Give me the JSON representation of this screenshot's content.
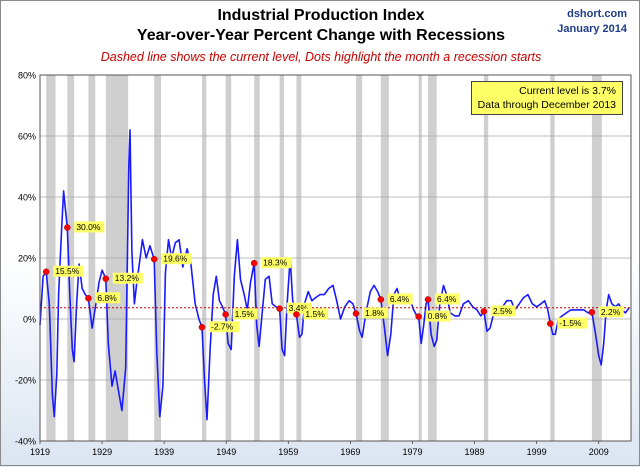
{
  "header": {
    "title_line1": "Industrial Production Index",
    "title_line2": "Year-over-Year Percent Change with Recessions",
    "subtitle": "Dashed line shows the current level, Dots highlight the month a recession starts",
    "site": "dshort.com",
    "date": "January 2014"
  },
  "annotation": {
    "line1": "Current level is 3.7%",
    "line2": "Data through December 2013"
  },
  "colors": {
    "series": "#1a1aff",
    "dot": "#ff0000",
    "recession": "#cfcfcf",
    "current_level": "#cc0000",
    "label_bg": "#ffff66"
  },
  "chart_data": {
    "type": "line",
    "title": "Industrial Production Index",
    "subtitle": "Year-over-Year Percent Change with Recessions",
    "xlabel": "",
    "ylabel": "",
    "xlim": [
      1919.0,
      2014.2
    ],
    "ylim": [
      -40,
      80
    ],
    "y_ticks": [
      -40,
      -20,
      0,
      20,
      40,
      60,
      80
    ],
    "y_tick_labels": [
      "-40%",
      "-20%",
      "0%",
      "20%",
      "40%",
      "60%",
      "80%"
    ],
    "x_ticks": [
      1919,
      1929,
      1939,
      1949,
      1959,
      1969,
      1979,
      1989,
      1999,
      2009
    ],
    "x_tick_labels": [
      "1919",
      "1929",
      "1939",
      "1949",
      "1959",
      "1969",
      "1979",
      "1989",
      "1999",
      "2009"
    ],
    "grid": true,
    "current_level": 3.7,
    "recessions": [
      [
        1920.0,
        1921.5
      ],
      [
        1923.4,
        1924.5
      ],
      [
        1926.8,
        1927.9
      ],
      [
        1929.6,
        1933.2
      ],
      [
        1937.4,
        1938.5
      ],
      [
        1945.1,
        1945.8
      ],
      [
        1948.9,
        1949.8
      ],
      [
        1953.5,
        1954.4
      ],
      [
        1957.6,
        1958.3
      ],
      [
        1960.3,
        1961.1
      ],
      [
        1969.9,
        1970.9
      ],
      [
        1973.9,
        1975.2
      ],
      [
        1980.0,
        1980.5
      ],
      [
        1981.5,
        1982.9
      ],
      [
        1990.5,
        1991.2
      ],
      [
        2001.2,
        2001.9
      ],
      [
        2007.9,
        2009.5
      ]
    ],
    "recession_start_points": [
      {
        "x": 1920.0,
        "y": 15.5,
        "label": "15.5%"
      },
      {
        "x": 1923.4,
        "y": 30.0,
        "label": "30.0%"
      },
      {
        "x": 1926.8,
        "y": 6.8,
        "label": "6.8%"
      },
      {
        "x": 1929.6,
        "y": 13.2,
        "label": "13.2%"
      },
      {
        "x": 1937.4,
        "y": 19.6,
        "label": "19.6%"
      },
      {
        "x": 1945.1,
        "y": -2.7,
        "label": "-2.7%"
      },
      {
        "x": 1948.9,
        "y": 1.5,
        "label": "1.5%"
      },
      {
        "x": 1953.5,
        "y": 18.3,
        "label": "18.3%"
      },
      {
        "x": 1957.6,
        "y": 3.4,
        "label": "3.4%"
      },
      {
        "x": 1960.3,
        "y": 1.5,
        "label": "1.5%"
      },
      {
        "x": 1969.9,
        "y": 1.8,
        "label": "1.8%"
      },
      {
        "x": 1973.9,
        "y": 6.4,
        "label": "6.4%"
      },
      {
        "x": 1980.0,
        "y": 0.8,
        "label": "0.8%"
      },
      {
        "x": 1981.5,
        "y": 6.4,
        "label": "6.4%"
      },
      {
        "x": 1990.5,
        "y": 2.5,
        "label": "2.5%"
      },
      {
        "x": 2001.2,
        "y": -1.5,
        "label": "-1.5%"
      },
      {
        "x": 2007.9,
        "y": 2.2,
        "label": "2.2%"
      }
    ],
    "series": [
      {
        "values": [
          [
            1919.0,
            -2
          ],
          [
            1919.5,
            14
          ],
          [
            1920.0,
            15.5
          ],
          [
            1920.5,
            5
          ],
          [
            1921.0,
            -25
          ],
          [
            1921.3,
            -32
          ],
          [
            1921.7,
            -18
          ],
          [
            1922.0,
            8
          ],
          [
            1922.5,
            30
          ],
          [
            1922.8,
            42
          ],
          [
            1923.0,
            38
          ],
          [
            1923.4,
            30
          ],
          [
            1923.8,
            8
          ],
          [
            1924.2,
            -10
          ],
          [
            1924.5,
            -14
          ],
          [
            1924.9,
            5
          ],
          [
            1925.3,
            18
          ],
          [
            1925.8,
            10
          ],
          [
            1926.3,
            8
          ],
          [
            1926.8,
            6.8
          ],
          [
            1927.4,
            -3
          ],
          [
            1928.0,
            5
          ],
          [
            1928.5,
            12
          ],
          [
            1929.0,
            16
          ],
          [
            1929.6,
            13.2
          ],
          [
            1930.0,
            -8
          ],
          [
            1930.6,
            -22
          ],
          [
            1931.1,
            -17
          ],
          [
            1931.6,
            -23
          ],
          [
            1932.2,
            -30
          ],
          [
            1932.8,
            -16
          ],
          [
            1933.3,
            50
          ],
          [
            1933.5,
            62
          ],
          [
            1933.8,
            22
          ],
          [
            1934.2,
            5
          ],
          [
            1934.6,
            12
          ],
          [
            1935.0,
            18
          ],
          [
            1935.5,
            26
          ],
          [
            1936.1,
            20
          ],
          [
            1936.7,
            24
          ],
          [
            1937.4,
            19.6
          ],
          [
            1937.8,
            -10
          ],
          [
            1938.3,
            -32
          ],
          [
            1938.8,
            -22
          ],
          [
            1939.2,
            15
          ],
          [
            1939.7,
            26
          ],
          [
            1940.2,
            20
          ],
          [
            1940.8,
            25
          ],
          [
            1941.4,
            26
          ],
          [
            1942.0,
            17
          ],
          [
            1942.7,
            23
          ],
          [
            1943.3,
            18
          ],
          [
            1944.0,
            5
          ],
          [
            1944.6,
            0
          ],
          [
            1945.1,
            -2.7
          ],
          [
            1945.5,
            -20
          ],
          [
            1945.9,
            -33
          ],
          [
            1946.4,
            -10
          ],
          [
            1946.9,
            8
          ],
          [
            1947.4,
            14
          ],
          [
            1947.9,
            6
          ],
          [
            1948.4,
            4
          ],
          [
            1948.9,
            1.5
          ],
          [
            1949.3,
            -8
          ],
          [
            1949.8,
            -10
          ],
          [
            1950.3,
            14
          ],
          [
            1950.8,
            26
          ],
          [
            1951.3,
            13
          ],
          [
            1951.9,
            8
          ],
          [
            1952.4,
            3
          ],
          [
            1952.9,
            12
          ],
          [
            1953.5,
            18.3
          ],
          [
            1953.9,
            -2
          ],
          [
            1954.3,
            -9
          ],
          [
            1954.8,
            2
          ],
          [
            1955.3,
            13
          ],
          [
            1955.9,
            14
          ],
          [
            1956.4,
            5
          ],
          [
            1957.0,
            4
          ],
          [
            1957.6,
            3.4
          ],
          [
            1958.0,
            -10
          ],
          [
            1958.4,
            -12
          ],
          [
            1958.8,
            5
          ],
          [
            1959.3,
            20
          ],
          [
            1959.7,
            6
          ],
          [
            1960.3,
            1.5
          ],
          [
            1960.8,
            -6
          ],
          [
            1961.2,
            -5
          ],
          [
            1961.6,
            5
          ],
          [
            1962.2,
            9
          ],
          [
            1962.8,
            6
          ],
          [
            1963.4,
            7
          ],
          [
            1964.1,
            8
          ],
          [
            1964.8,
            8
          ],
          [
            1965.5,
            10
          ],
          [
            1966.2,
            11
          ],
          [
            1966.8,
            6
          ],
          [
            1967.4,
            0
          ],
          [
            1968.1,
            4
          ],
          [
            1968.8,
            6
          ],
          [
            1969.4,
            5
          ],
          [
            1969.9,
            1.8
          ],
          [
            1970.5,
            -4
          ],
          [
            1970.9,
            -6
          ],
          [
            1971.5,
            2
          ],
          [
            1972.2,
            9
          ],
          [
            1972.8,
            11
          ],
          [
            1973.4,
            9
          ],
          [
            1973.9,
            6.4
          ],
          [
            1974.5,
            -3
          ],
          [
            1975.0,
            -12
          ],
          [
            1975.5,
            -5
          ],
          [
            1976.0,
            8
          ],
          [
            1976.5,
            10
          ],
          [
            1977.1,
            6
          ],
          [
            1977.8,
            6
          ],
          [
            1978.5,
            7
          ],
          [
            1979.2,
            3
          ],
          [
            1979.7,
            1
          ],
          [
            1980.0,
            0.8
          ],
          [
            1980.4,
            -8
          ],
          [
            1980.8,
            -2
          ],
          [
            1981.2,
            5
          ],
          [
            1981.5,
            6.4
          ],
          [
            1982.0,
            -5
          ],
          [
            1982.5,
            -9
          ],
          [
            1982.9,
            -7
          ],
          [
            1983.4,
            5
          ],
          [
            1984.0,
            11
          ],
          [
            1984.5,
            8
          ],
          [
            1985.1,
            2
          ],
          [
            1985.8,
            1
          ],
          [
            1986.5,
            1
          ],
          [
            1987.2,
            5
          ],
          [
            1988.0,
            6
          ],
          [
            1988.7,
            4
          ],
          [
            1989.4,
            3
          ],
          [
            1990.0,
            1
          ],
          [
            1990.5,
            2.5
          ],
          [
            1991.0,
            -4
          ],
          [
            1991.5,
            -3
          ],
          [
            1992.1,
            2
          ],
          [
            1992.8,
            4
          ],
          [
            1993.5,
            4
          ],
          [
            1994.2,
            6
          ],
          [
            1994.9,
            6
          ],
          [
            1995.5,
            3
          ],
          [
            1996.2,
            5
          ],
          [
            1996.9,
            7
          ],
          [
            1997.6,
            8
          ],
          [
            1998.3,
            5
          ],
          [
            1999.0,
            4
          ],
          [
            1999.7,
            5
          ],
          [
            2000.3,
            6
          ],
          [
            2000.8,
            3
          ],
          [
            2001.2,
            -1.5
          ],
          [
            2001.6,
            -5
          ],
          [
            2002.0,
            -5
          ],
          [
            2002.5,
            0
          ],
          [
            2003.1,
            1
          ],
          [
            2003.8,
            2
          ],
          [
            2004.5,
            3
          ],
          [
            2005.2,
            3
          ],
          [
            2005.9,
            3
          ],
          [
            2006.6,
            3
          ],
          [
            2007.3,
            2
          ],
          [
            2007.9,
            2.2
          ],
          [
            2008.5,
            -5
          ],
          [
            2009.0,
            -12
          ],
          [
            2009.4,
            -15
          ],
          [
            2009.8,
            -8
          ],
          [
            2010.2,
            3
          ],
          [
            2010.6,
            8
          ],
          [
            2011.1,
            5
          ],
          [
            2011.7,
            4
          ],
          [
            2012.2,
            5
          ],
          [
            2012.8,
            3
          ],
          [
            2013.3,
            2
          ],
          [
            2013.9,
            3.7
          ]
        ]
      }
    ]
  }
}
